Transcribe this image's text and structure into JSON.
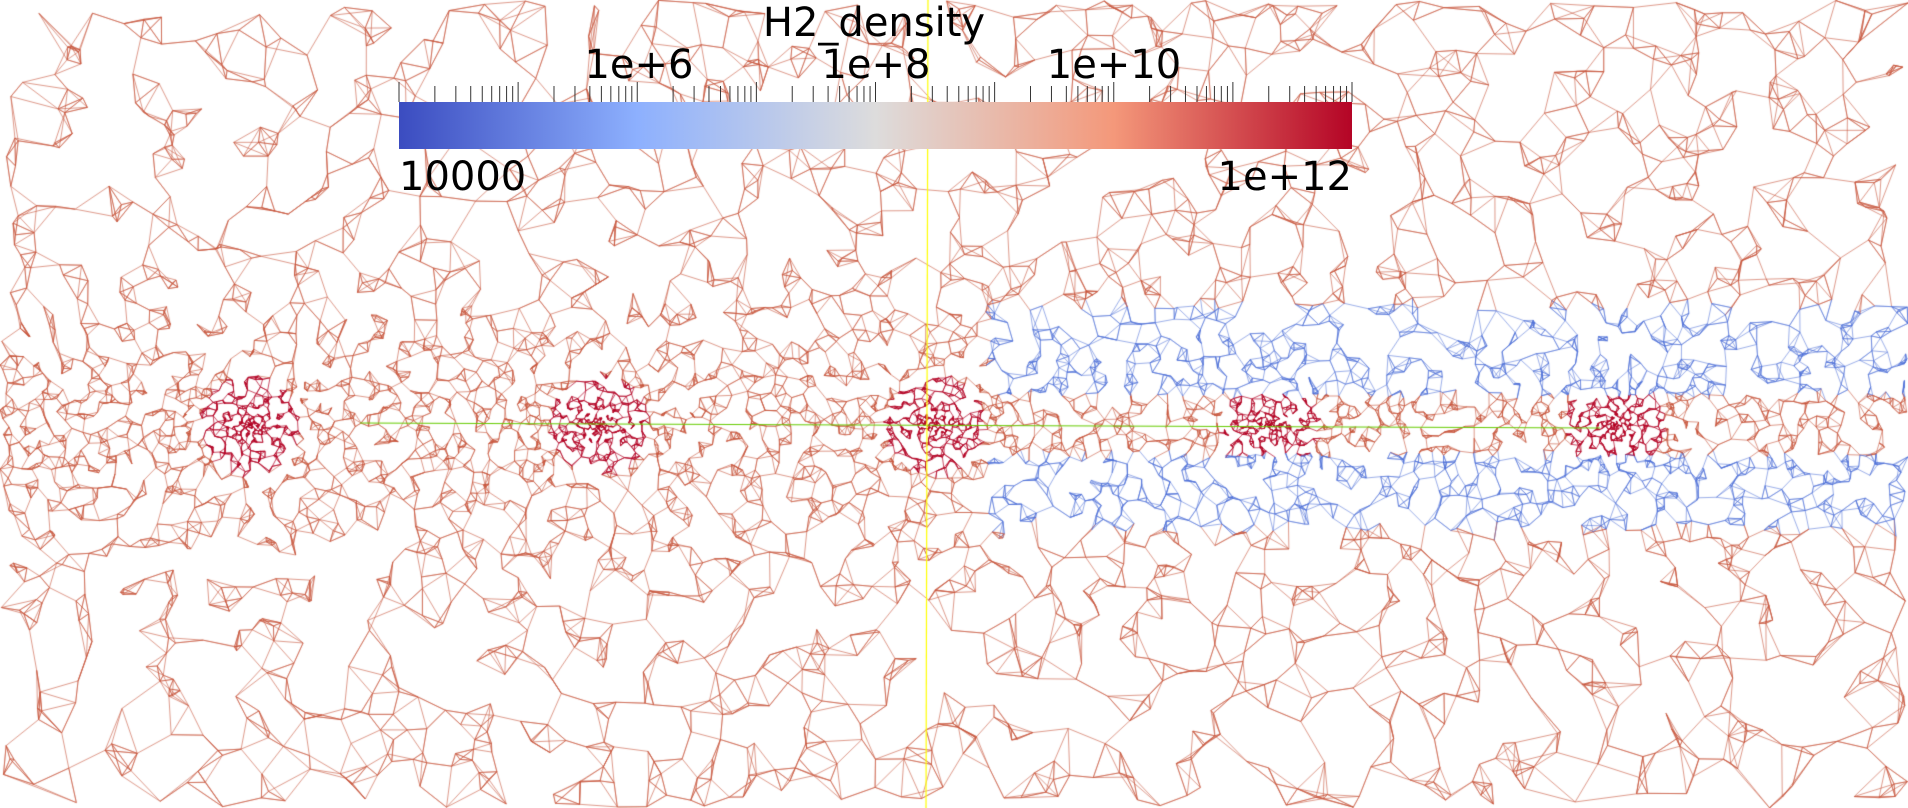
{
  "scalar_bar": {
    "title": "H2_density",
    "min_label": "10000",
    "max_label": "1e+12",
    "tick_labels": [
      "1e+6",
      "1e+8",
      "1e+10"
    ],
    "scale": "log",
    "range": [
      10000,
      1000000000000
    ],
    "colormap": [
      "#3b4cc0",
      "#8db0fe",
      "#dddcdc",
      "#f4987a",
      "#b40426"
    ]
  },
  "mesh": {
    "default_edge_color": "#c8553d",
    "dense_core_color": "#b40426",
    "low_density_edge_color": "#4d6fd8"
  },
  "probe_line": {
    "color": "#ffff00"
  },
  "axis_line": {
    "color": "#66cc00"
  }
}
